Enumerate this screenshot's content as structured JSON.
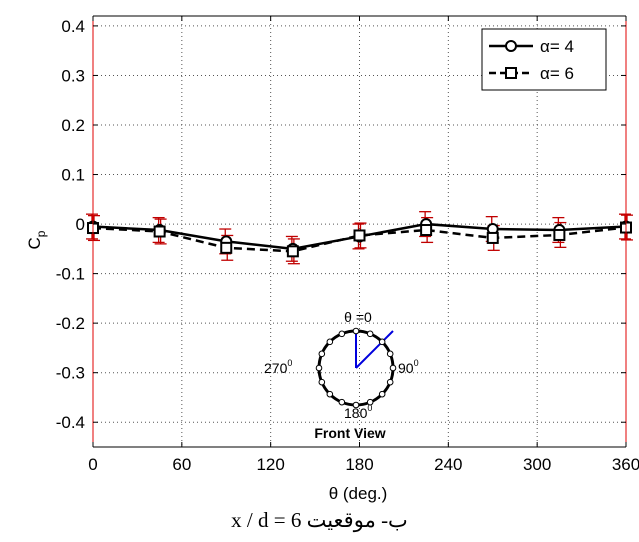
{
  "chart_data": {
    "type": "line",
    "xlabel": "θ (deg.)",
    "ylabel": "Cp",
    "ylabel_main": "C",
    "ylabel_sub": "p",
    "xlim": [
      0,
      360
    ],
    "ylim": [
      -0.45,
      0.42
    ],
    "x_ticks": [
      0,
      60,
      120,
      180,
      240,
      300,
      360
    ],
    "x_tick_labels": [
      "0",
      "60",
      "120",
      "180",
      "240",
      "300",
      "360"
    ],
    "y_ticks": [
      0.4,
      0.3,
      0.2,
      0.1,
      0,
      -0.1,
      -0.2,
      -0.3,
      -0.4
    ],
    "y_tick_labels": [
      "0.4",
      "0.3",
      "0.2",
      "0.1",
      "0",
      "-0.1",
      "-0.2",
      "-0.3",
      "-0.4"
    ],
    "grid": true,
    "legend_position": "top-right",
    "x": [
      0,
      45,
      90,
      135,
      180,
      225,
      270,
      315,
      360
    ],
    "series": [
      {
        "name": "α= 4",
        "marker": "circle",
        "line_style": "solid",
        "values": [
          -0.005,
          -0.012,
          -0.035,
          -0.05,
          -0.025,
          0.0,
          -0.01,
          -0.012,
          -0.005
        ],
        "error": [
          0.025,
          0.025,
          0.025,
          0.025,
          0.025,
          0.025,
          0.025,
          0.025,
          0.025
        ]
      },
      {
        "name": "α= 6",
        "marker": "square",
        "line_style": "dashed",
        "values": [
          -0.008,
          -0.015,
          -0.048,
          -0.055,
          -0.023,
          -0.012,
          -0.028,
          -0.022,
          -0.007
        ],
        "error": [
          0.025,
          0.025,
          0.025,
          0.025,
          0.025,
          0.025,
          0.025,
          0.025,
          0.025
        ]
      }
    ],
    "colors": {
      "data": "#000000",
      "error_bars": "#c00000",
      "frame_side": "#e00000",
      "inset_pointer": "#0000dd"
    },
    "inset": {
      "top_label": "θ =0",
      "right_label": "90",
      "bottom_label": "180",
      "left_label": "270",
      "degree_mark": "0",
      "caption": "Front View"
    }
  },
  "caption": "ب- موقعیت x / d = 6"
}
